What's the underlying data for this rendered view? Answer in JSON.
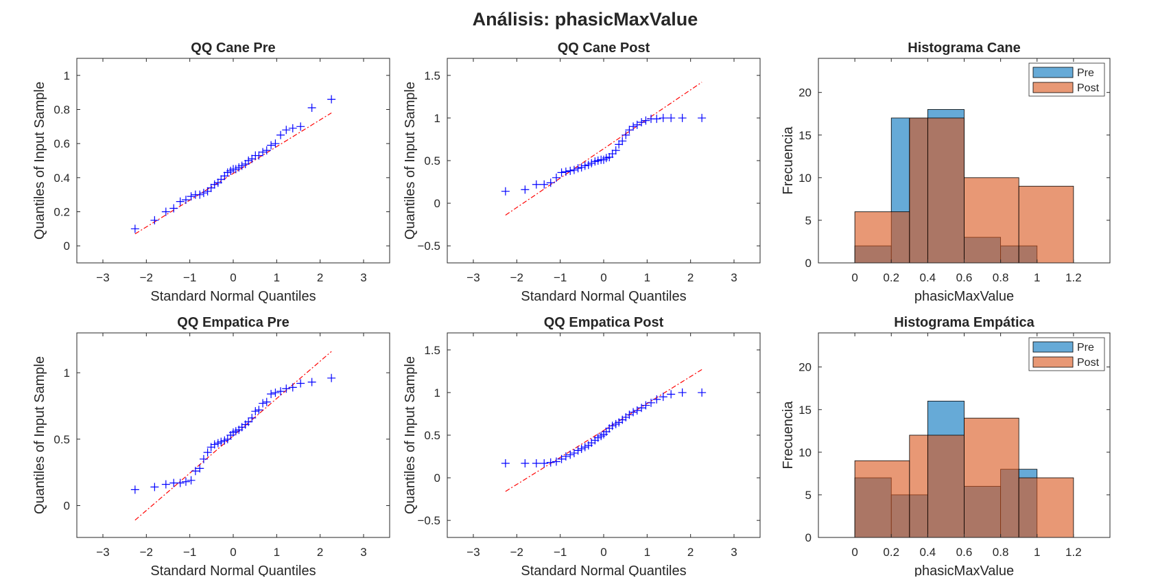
{
  "figure_title": "Análisis: phasicMaxValue",
  "colors": {
    "qq_marker": "#0000ff",
    "qq_reference": "#ff0000",
    "hist_pre": "#0072bd",
    "hist_post": "#d95319",
    "axis": "#262626"
  },
  "chart_data": [
    {
      "type": "scatter",
      "subtype": "qq-plot",
      "title": "QQ Cane Pre",
      "xlabel": "Standard Normal Quantiles",
      "ylabel": "Quantiles of Input Sample",
      "xlim": [
        -3.6,
        3.6
      ],
      "ylim": [
        -0.1,
        1.1
      ],
      "xticks": [
        -3,
        -2,
        -1,
        0,
        1,
        2,
        3
      ],
      "yticks": [
        0,
        0.2,
        0.4,
        0.6,
        0.8,
        1
      ],
      "reference_line": {
        "x": [
          -2.26,
          2.26
        ],
        "y": [
          0.07,
          0.78
        ]
      },
      "x": [
        -2.26,
        -1.81,
        -1.55,
        -1.37,
        -1.22,
        -1.09,
        -0.97,
        -0.87,
        -0.77,
        -0.68,
        -0.59,
        -0.51,
        -0.43,
        -0.35,
        -0.28,
        -0.2,
        -0.13,
        -0.06,
        0.0,
        0.06,
        0.13,
        0.2,
        0.28,
        0.35,
        0.43,
        0.51,
        0.59,
        0.68,
        0.77,
        0.87,
        0.97,
        1.09,
        1.22,
        1.37,
        1.55,
        1.81,
        2.26
      ],
      "y": [
        0.1,
        0.15,
        0.2,
        0.22,
        0.26,
        0.27,
        0.29,
        0.3,
        0.3,
        0.31,
        0.32,
        0.34,
        0.36,
        0.37,
        0.39,
        0.41,
        0.43,
        0.44,
        0.45,
        0.45,
        0.46,
        0.47,
        0.48,
        0.5,
        0.51,
        0.53,
        0.53,
        0.55,
        0.56,
        0.59,
        0.6,
        0.65,
        0.68,
        0.69,
        0.7,
        0.81,
        0.86
      ]
    },
    {
      "type": "scatter",
      "subtype": "qq-plot",
      "title": "QQ Cane Post",
      "xlabel": "Standard Normal Quantiles",
      "ylabel": "Quantiles of Input Sample",
      "xlim": [
        -3.6,
        3.6
      ],
      "ylim": [
        -0.7,
        1.7
      ],
      "xticks": [
        -3,
        -2,
        -1,
        0,
        1,
        2,
        3
      ],
      "yticks": [
        -0.5,
        0,
        0.5,
        1,
        1.5
      ],
      "reference_line": {
        "x": [
          -2.26,
          2.26
        ],
        "y": [
          -0.14,
          1.42
        ]
      },
      "x": [
        -2.26,
        -1.81,
        -1.55,
        -1.37,
        -1.22,
        -1.09,
        -0.97,
        -0.87,
        -0.77,
        -0.68,
        -0.59,
        -0.51,
        -0.43,
        -0.35,
        -0.28,
        -0.2,
        -0.13,
        -0.06,
        0.0,
        0.06,
        0.13,
        0.2,
        0.28,
        0.35,
        0.43,
        0.51,
        0.59,
        0.68,
        0.77,
        0.87,
        0.97,
        1.09,
        1.22,
        1.37,
        1.55,
        1.81,
        2.26
      ],
      "y": [
        0.14,
        0.16,
        0.22,
        0.22,
        0.24,
        0.3,
        0.36,
        0.37,
        0.38,
        0.39,
        0.41,
        0.42,
        0.44,
        0.45,
        0.47,
        0.49,
        0.5,
        0.51,
        0.51,
        0.53,
        0.54,
        0.58,
        0.62,
        0.69,
        0.73,
        0.8,
        0.86,
        0.9,
        0.92,
        0.95,
        0.97,
        0.99,
        0.99,
        1.0,
        1.0,
        1.0,
        1.0
      ]
    },
    {
      "type": "bar",
      "subtype": "histogram",
      "title": "Histograma Cane",
      "xlabel": "phasicMaxValue",
      "ylabel": "Frecuencia",
      "xlim": [
        -0.2,
        1.4
      ],
      "ylim": [
        0,
        24
      ],
      "xticks": [
        0,
        0.2,
        0.4,
        0.6,
        0.8,
        1,
        1.2
      ],
      "yticks": [
        0,
        5,
        10,
        15,
        20
      ],
      "legend": {
        "location": "top-right",
        "entries": [
          "Pre",
          "Post"
        ]
      },
      "series": [
        {
          "name": "Pre",
          "bins": [
            {
              "x0": 0.0,
              "x1": 0.2,
              "count": 2
            },
            {
              "x0": 0.2,
              "x1": 0.3,
              "count": 17
            },
            {
              "x0": 0.3,
              "x1": 0.4,
              "count": 17
            },
            {
              "x0": 0.4,
              "x1": 0.6,
              "count": 18
            },
            {
              "x0": 0.6,
              "x1": 0.8,
              "count": 3
            },
            {
              "x0": 0.8,
              "x1": 0.9,
              "count": 2
            },
            {
              "x0": 0.9,
              "x1": 1.0,
              "count": 2
            }
          ]
        },
        {
          "name": "Post",
          "bins": [
            {
              "x0": 0.0,
              "x1": 0.3,
              "count": 6
            },
            {
              "x0": 0.3,
              "x1": 0.4,
              "count": 17
            },
            {
              "x0": 0.4,
              "x1": 0.6,
              "count": 17
            },
            {
              "x0": 0.6,
              "x1": 0.9,
              "count": 10
            },
            {
              "x0": 0.9,
              "x1": 1.2,
              "count": 9
            }
          ]
        }
      ]
    },
    {
      "type": "scatter",
      "subtype": "qq-plot",
      "title": "QQ Empatica Pre",
      "xlabel": "Standard Normal Quantiles",
      "ylabel": "Quantiles of Input Sample",
      "xlim": [
        -3.6,
        3.6
      ],
      "ylim": [
        -0.24,
        1.3
      ],
      "xticks": [
        -3,
        -2,
        -1,
        0,
        1,
        2,
        3
      ],
      "yticks": [
        0,
        0.5,
        1
      ],
      "reference_line": {
        "x": [
          -2.26,
          2.26
        ],
        "y": [
          -0.11,
          1.16
        ]
      },
      "x": [
        -2.26,
        -1.81,
        -1.55,
        -1.37,
        -1.22,
        -1.09,
        -0.97,
        -0.87,
        -0.77,
        -0.68,
        -0.59,
        -0.51,
        -0.43,
        -0.35,
        -0.28,
        -0.2,
        -0.13,
        -0.06,
        0.0,
        0.06,
        0.13,
        0.2,
        0.28,
        0.35,
        0.43,
        0.51,
        0.59,
        0.68,
        0.77,
        0.87,
        0.97,
        1.09,
        1.22,
        1.37,
        1.55,
        1.81,
        2.26
      ],
      "y": [
        0.12,
        0.14,
        0.16,
        0.17,
        0.17,
        0.18,
        0.19,
        0.26,
        0.28,
        0.35,
        0.4,
        0.44,
        0.46,
        0.47,
        0.48,
        0.49,
        0.5,
        0.53,
        0.55,
        0.56,
        0.57,
        0.59,
        0.61,
        0.63,
        0.66,
        0.71,
        0.72,
        0.77,
        0.78,
        0.84,
        0.85,
        0.86,
        0.88,
        0.89,
        0.92,
        0.93,
        0.96
      ]
    },
    {
      "type": "scatter",
      "subtype": "qq-plot",
      "title": "QQ Empatica Post",
      "xlabel": "Standard Normal Quantiles",
      "ylabel": "Quantiles of Input Sample",
      "xlim": [
        -3.6,
        3.6
      ],
      "ylim": [
        -0.7,
        1.7
      ],
      "xticks": [
        -3,
        -2,
        -1,
        0,
        1,
        2,
        3
      ],
      "yticks": [
        -0.5,
        0,
        0.5,
        1,
        1.5
      ],
      "reference_line": {
        "x": [
          -2.26,
          2.26
        ],
        "y": [
          -0.16,
          1.27
        ]
      },
      "x": [
        -2.26,
        -1.81,
        -1.55,
        -1.37,
        -1.22,
        -1.09,
        -0.97,
        -0.87,
        -0.77,
        -0.68,
        -0.59,
        -0.51,
        -0.43,
        -0.35,
        -0.28,
        -0.2,
        -0.13,
        -0.06,
        0.0,
        0.06,
        0.13,
        0.2,
        0.28,
        0.35,
        0.43,
        0.51,
        0.59,
        0.68,
        0.77,
        0.87,
        0.97,
        1.09,
        1.22,
        1.37,
        1.55,
        1.81,
        2.26
      ],
      "y": [
        0.17,
        0.17,
        0.17,
        0.17,
        0.18,
        0.19,
        0.22,
        0.25,
        0.27,
        0.29,
        0.32,
        0.34,
        0.36,
        0.38,
        0.41,
        0.44,
        0.47,
        0.49,
        0.51,
        0.54,
        0.58,
        0.61,
        0.63,
        0.65,
        0.68,
        0.71,
        0.74,
        0.77,
        0.79,
        0.82,
        0.85,
        0.88,
        0.92,
        0.95,
        0.98,
        1.0,
        1.0
      ]
    },
    {
      "type": "bar",
      "subtype": "histogram",
      "title": "Histograma Empática",
      "xlabel": "phasicMaxValue",
      "ylabel": "Frecuencia",
      "xlim": [
        -0.2,
        1.4
      ],
      "ylim": [
        0,
        24
      ],
      "xticks": [
        0,
        0.2,
        0.4,
        0.6,
        0.8,
        1,
        1.2
      ],
      "yticks": [
        0,
        5,
        10,
        15,
        20
      ],
      "legend": {
        "location": "top-right",
        "entries": [
          "Pre",
          "Post"
        ]
      },
      "series": [
        {
          "name": "Pre",
          "bins": [
            {
              "x0": 0.0,
              "x1": 0.2,
              "count": 7
            },
            {
              "x0": 0.2,
              "x1": 0.3,
              "count": 5
            },
            {
              "x0": 0.3,
              "x1": 0.4,
              "count": 5
            },
            {
              "x0": 0.4,
              "x1": 0.6,
              "count": 16
            },
            {
              "x0": 0.6,
              "x1": 0.8,
              "count": 6
            },
            {
              "x0": 0.8,
              "x1": 0.9,
              "count": 8
            },
            {
              "x0": 0.9,
              "x1": 1.0,
              "count": 8
            }
          ]
        },
        {
          "name": "Post",
          "bins": [
            {
              "x0": 0.0,
              "x1": 0.3,
              "count": 9
            },
            {
              "x0": 0.3,
              "x1": 0.4,
              "count": 12
            },
            {
              "x0": 0.4,
              "x1": 0.6,
              "count": 12
            },
            {
              "x0": 0.6,
              "x1": 0.9,
              "count": 14
            },
            {
              "x0": 0.9,
              "x1": 1.2,
              "count": 7
            }
          ]
        }
      ]
    }
  ]
}
